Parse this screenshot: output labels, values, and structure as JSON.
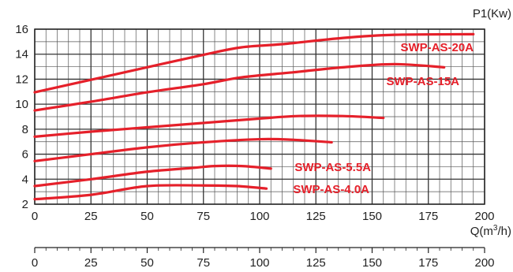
{
  "chart_data": {
    "type": "line",
    "ylabel": "P1(Kw)",
    "xlabel_main": "Q(m",
    "xlabel_sup": "3",
    "xlabel_tail": "/h)",
    "xlim": [
      0,
      200
    ],
    "ylim": [
      2,
      16
    ],
    "x_ticks": [
      0,
      25,
      50,
      75,
      100,
      125,
      150,
      175,
      200
    ],
    "y_ticks": [
      2,
      4,
      6,
      8,
      10,
      12,
      14,
      16
    ],
    "grid": true,
    "line_color": "#e5202a",
    "series": [
      {
        "name": "SWP-AS-20A",
        "points": [
          [
            0,
            10.95
          ],
          [
            25,
            11.95
          ],
          [
            50,
            12.95
          ],
          [
            75,
            13.95
          ],
          [
            92,
            14.55
          ],
          [
            110,
            14.8
          ],
          [
            137,
            15.3
          ],
          [
            160,
            15.55
          ],
          [
            195,
            15.6
          ]
        ]
      },
      {
        "name": "SWP-AS-15A",
        "points": [
          [
            0,
            9.5
          ],
          [
            25,
            10.2
          ],
          [
            50,
            10.95
          ],
          [
            75,
            11.6
          ],
          [
            92,
            12.15
          ],
          [
            115,
            12.55
          ],
          [
            137,
            12.95
          ],
          [
            160,
            13.2
          ],
          [
            182,
            12.95
          ]
        ]
      },
      {
        "points": [
          [
            0,
            7.4
          ],
          [
            25,
            7.8
          ],
          [
            50,
            8.15
          ],
          [
            75,
            8.5
          ],
          [
            100,
            8.85
          ],
          [
            117,
            9.05
          ],
          [
            137,
            9.05
          ],
          [
            155,
            8.9
          ]
        ]
      },
      {
        "points": [
          [
            0,
            5.45
          ],
          [
            25,
            6.0
          ],
          [
            50,
            6.55
          ],
          [
            75,
            6.95
          ],
          [
            100,
            7.2
          ],
          [
            115,
            7.15
          ],
          [
            132,
            6.95
          ]
        ]
      },
      {
        "name": "SWP-AS-5.5A",
        "points": [
          [
            0,
            3.45
          ],
          [
            25,
            4.0
          ],
          [
            50,
            4.6
          ],
          [
            70,
            4.9
          ],
          [
            80,
            5.05
          ],
          [
            92,
            5.05
          ],
          [
            105,
            4.85
          ]
        ]
      },
      {
        "name": "SWP-AS-4.0A",
        "points": [
          [
            0,
            2.4
          ],
          [
            25,
            2.75
          ],
          [
            50,
            3.45
          ],
          [
            75,
            3.5
          ],
          [
            90,
            3.45
          ],
          [
            103,
            3.25
          ]
        ]
      }
    ]
  }
}
